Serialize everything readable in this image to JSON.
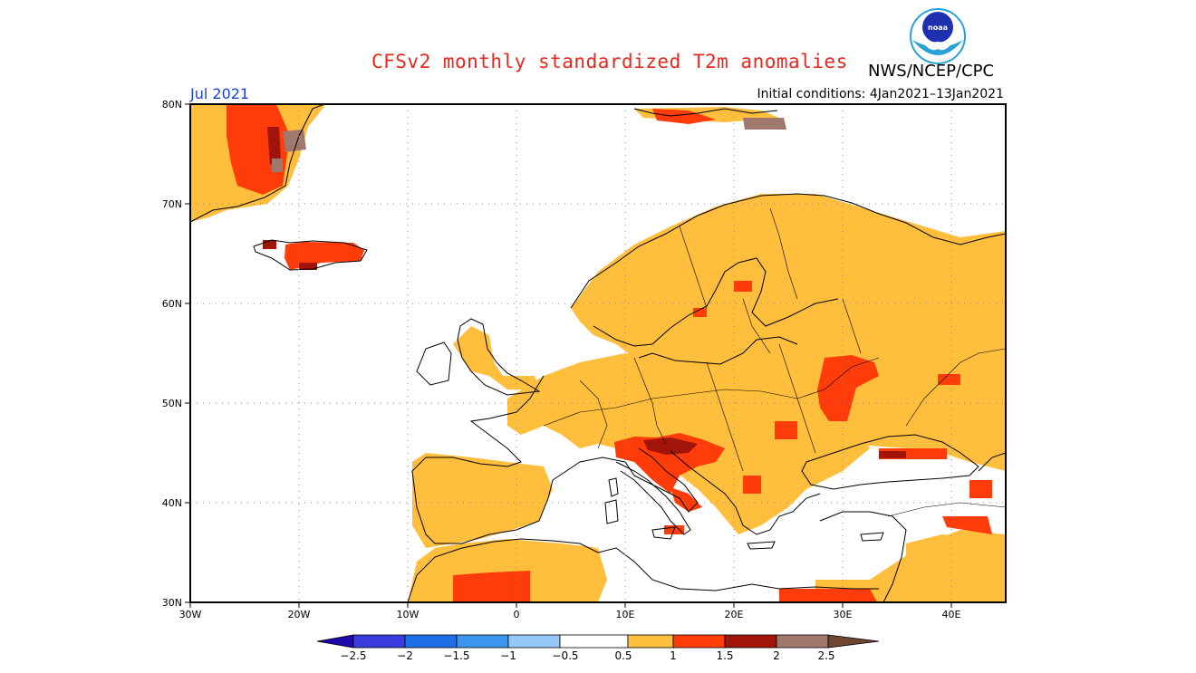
{
  "title": "CFSv2 monthly standardized T2m anomalies",
  "agency": "NWS/NCEP/CPC",
  "logo": {
    "text": "noaa",
    "icon": "noaa-logo-icon"
  },
  "month_label": "Jul 2021",
  "initial_conditions": "Initial conditions: 4Jan2021–13Jan2021",
  "axes": {
    "lat_labels": [
      "80N",
      "70N",
      "60N",
      "50N",
      "40N",
      "30N"
    ],
    "lon_labels": [
      "30W",
      "20W",
      "10W",
      "0",
      "10E",
      "20E",
      "30E",
      "40E"
    ],
    "lon_range": [
      -30,
      45
    ],
    "lat_range": [
      30,
      80
    ],
    "grid": "dotted"
  },
  "colorbar": {
    "labels": [
      "−2.5",
      "−2",
      "−1.5",
      "−1",
      "−0.5",
      "0.5",
      "1",
      "1.5",
      "2",
      "2.5"
    ],
    "colors": [
      "#1e0aa8",
      "#3c3ce0",
      "#1e6ee6",
      "#3c96f0",
      "#96c8f5",
      "#ffffff",
      "#ffbe3c",
      "#ff3c0a",
      "#a0140a",
      "#a0786e",
      "#6e4632"
    ]
  },
  "anomaly_colors": {
    "c05_1": "#ffbe3c",
    "c1_15": "#ff3c0a",
    "c15_2": "#a0140a",
    "c2_25": "#a0786e",
    "c25p": "#6e4632"
  }
}
